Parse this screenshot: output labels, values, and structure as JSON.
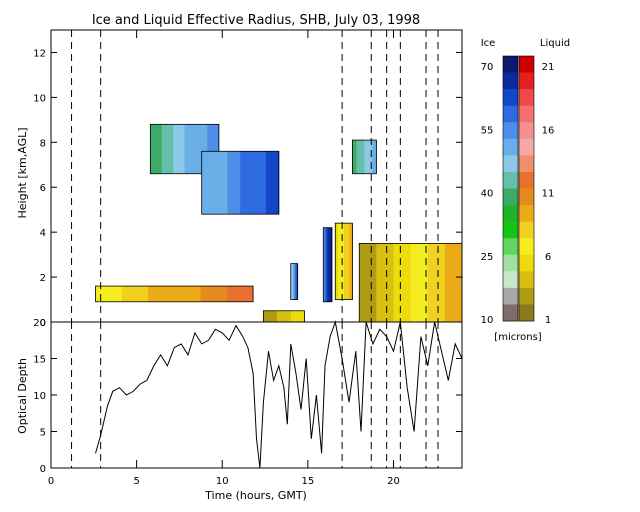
{
  "chart_data": [
    {
      "type": "heatmap",
      "title": "Ice and Liquid Effective Radius, SHB, July 03, 1998",
      "ylabel": "Height [km,AGL]",
      "xlim": [
        0,
        24
      ],
      "ylim": [
        0,
        13
      ],
      "y_ticks": [
        "0",
        "2",
        "4",
        "6",
        "8",
        "10",
        "12"
      ],
      "dashed_lines_hours": [
        1.2,
        2.9,
        17.0,
        18.7,
        19.6,
        20.4,
        21.9,
        22.6
      ],
      "colorbar": {
        "left_label": "Ice",
        "right_label": "Liquid",
        "units": "[microns]",
        "ice_ticks": [
          "70",
          "55",
          "40",
          "25",
          "10"
        ],
        "liquid_ticks": [
          "21",
          "16",
          "11",
          "6",
          "1"
        ],
        "ice_colors": [
          "#0b1a6e",
          "#0c2aa0",
          "#1446c8",
          "#2e6ae0",
          "#4e8ee8",
          "#6aaee8",
          "#8cc8e8",
          "#64c0a8",
          "#3eaa6a",
          "#22b22a",
          "#16c416",
          "#60d660",
          "#a0e0a0",
          "#c8e6c8",
          "#a8a8a8",
          "#806c6c"
        ],
        "liquid_colors": [
          "#cc0000",
          "#e42020",
          "#ee4a4a",
          "#f47070",
          "#f49090",
          "#f4a8a8",
          "#f0906a",
          "#e87030",
          "#e48a1e",
          "#ecaa18",
          "#f2d020",
          "#f4ee20",
          "#ecdc0c",
          "#d8c010",
          "#b09c14",
          "#8c7a1a"
        ]
      },
      "ice_cloud_regions": [
        {
          "hours": [
            5.8,
            9.8
          ],
          "height_km": [
            6.6,
            8.8
          ],
          "radius_microns": [
            40,
            55
          ]
        },
        {
          "hours": [
            8.8,
            13.3
          ],
          "height_km": [
            4.8,
            7.6
          ],
          "radius_microns": [
            50,
            60
          ]
        },
        {
          "hours": [
            17.6,
            19.0
          ],
          "height_km": [
            6.6,
            8.1
          ],
          "radius_microns": [
            40,
            50
          ]
        },
        {
          "hours": [
            15.9,
            16.4
          ],
          "height_km": [
            0.9,
            4.2
          ],
          "radius_microns": [
            55,
            70
          ]
        },
        {
          "hours": [
            14.0,
            14.4
          ],
          "height_km": [
            1.0,
            2.6
          ],
          "radius_microns": [
            45,
            60
          ]
        }
      ],
      "liquid_cloud_regions": [
        {
          "hours": [
            2.6,
            11.8
          ],
          "height_km": [
            0.9,
            1.6
          ],
          "radius_microns": [
            6,
            12
          ]
        },
        {
          "hours": [
            12.4,
            14.8
          ],
          "height_km": [
            0.0,
            0.5
          ],
          "radius_microns": [
            2,
            5
          ]
        },
        {
          "hours": [
            16.6,
            17.6
          ],
          "height_km": [
            1.0,
            4.4
          ],
          "radius_microns": [
            5,
            9
          ]
        },
        {
          "hours": [
            18.0,
            24.0
          ],
          "height_km": [
            0.0,
            3.5
          ],
          "radius_microns": [
            3,
            9
          ]
        }
      ]
    },
    {
      "type": "line",
      "xlabel": "Time (hours, GMT)",
      "ylabel": "Optical Depth",
      "xlim": [
        0,
        24
      ],
      "ylim": [
        0,
        20
      ],
      "x_ticks": [
        "0",
        "5",
        "10",
        "15",
        "20"
      ],
      "y_ticks": [
        "0",
        "5",
        "10",
        "15",
        "20"
      ],
      "x": [
        2.6,
        2.9,
        3.3,
        3.6,
        4.0,
        4.4,
        4.8,
        5.2,
        5.6,
        6.0,
        6.4,
        6.8,
        7.2,
        7.6,
        8.0,
        8.4,
        8.8,
        9.2,
        9.6,
        10.0,
        10.4,
        10.8,
        11.2,
        11.5,
        11.8,
        12.0,
        12.2,
        12.4,
        12.7,
        13.0,
        13.3,
        13.6,
        13.8,
        14.0,
        14.3,
        14.6,
        14.9,
        15.2,
        15.5,
        15.8,
        16.0,
        16.3,
        16.6,
        17.0,
        17.4,
        17.8,
        18.1,
        18.4,
        18.8,
        19.2,
        19.6,
        20.0,
        20.4,
        20.8,
        21.2,
        21.6,
        22.0,
        22.4,
        22.8,
        23.2,
        23.6,
        24.0
      ],
      "y": [
        2.0,
        4.5,
        8.5,
        10.5,
        11.0,
        10.0,
        10.5,
        11.5,
        12.0,
        14.0,
        15.5,
        14.0,
        16.5,
        17.0,
        15.5,
        18.5,
        17.0,
        17.5,
        19.0,
        18.5,
        17.5,
        19.5,
        18.0,
        16.5,
        13.0,
        4.0,
        0.0,
        9.0,
        16.0,
        12.0,
        14.0,
        11.0,
        6.0,
        17.0,
        13.0,
        8.0,
        15.0,
        4.0,
        10.0,
        2.0,
        14.0,
        18.0,
        20.0,
        15.0,
        9.0,
        16.0,
        5.0,
        20.0,
        17.0,
        19.0,
        18.0,
        16.0,
        20.0,
        11.0,
        5.0,
        18.0,
        14.0,
        20.0,
        16.0,
        12.0,
        17.0,
        15.0
      ]
    }
  ]
}
